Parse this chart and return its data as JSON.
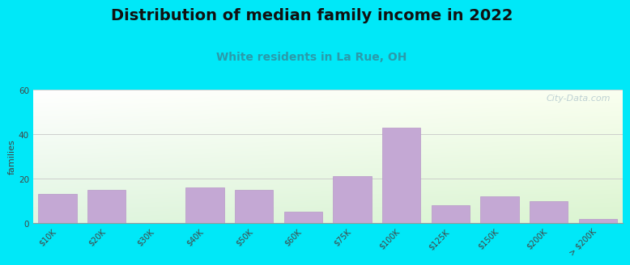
{
  "title": "Distribution of median family income in 2022",
  "subtitle": "White residents in La Rue, OH",
  "categories": [
    "$10K",
    "$20K",
    "$30K",
    "$40K",
    "$50K",
    "$60K",
    "$75K",
    "$100K",
    "$125K",
    "$150K",
    "$200K",
    "> $200K"
  ],
  "values": [
    13,
    15,
    0,
    16,
    15,
    5,
    21,
    43,
    8,
    12,
    10,
    2
  ],
  "bar_color": "#c4a8d4",
  "bar_edge_color": "#b898c8",
  "background_outer": "#00e8f8",
  "ylabel": "families",
  "ylim": [
    0,
    60
  ],
  "yticks": [
    0,
    20,
    40,
    60
  ],
  "grid_color": "#c8c8c8",
  "title_fontsize": 14,
  "subtitle_fontsize": 10,
  "subtitle_color": "#2a9aaa",
  "ylabel_fontsize": 8,
  "tick_fontsize": 7,
  "watermark_text": "City-Data.com",
  "watermark_color": "#b8ccd0"
}
